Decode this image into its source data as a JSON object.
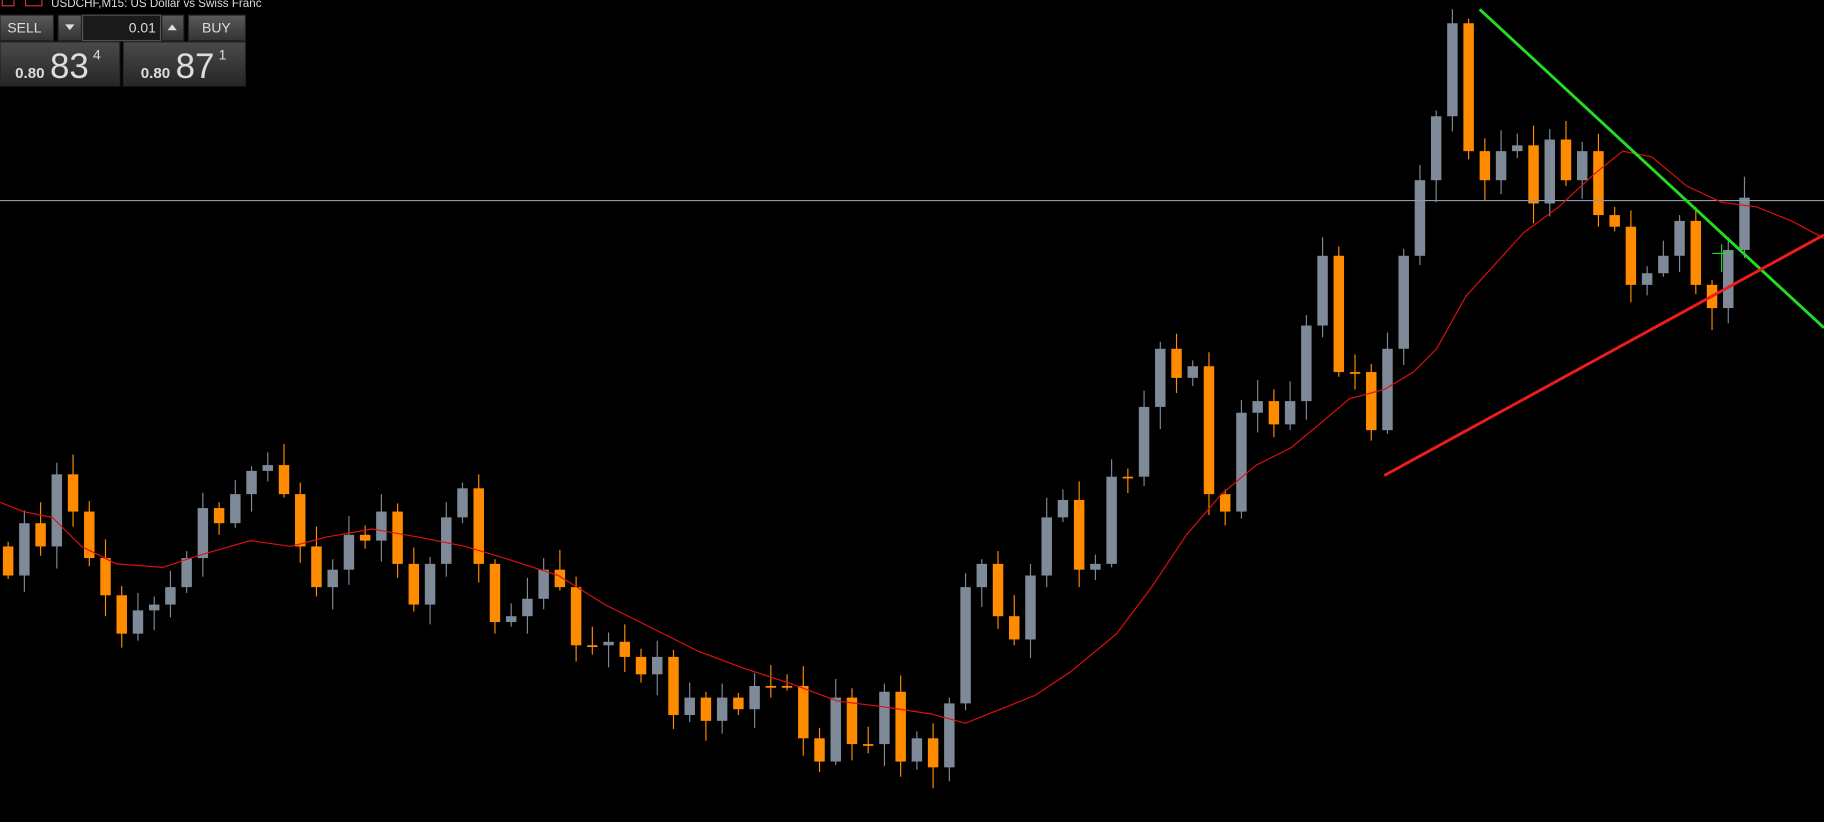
{
  "window_title": "USDCHF,M15:  US Dollar vs Swiss Franc",
  "trade_panel": {
    "sell_label": "SELL",
    "buy_label": "BUY",
    "lot": "0.01",
    "sell_price": {
      "prefix": "0.80",
      "big": "83",
      "sup": "4"
    },
    "buy_price": {
      "prefix": "0.80",
      "big": "87",
      "sup": "1"
    }
  }
}
